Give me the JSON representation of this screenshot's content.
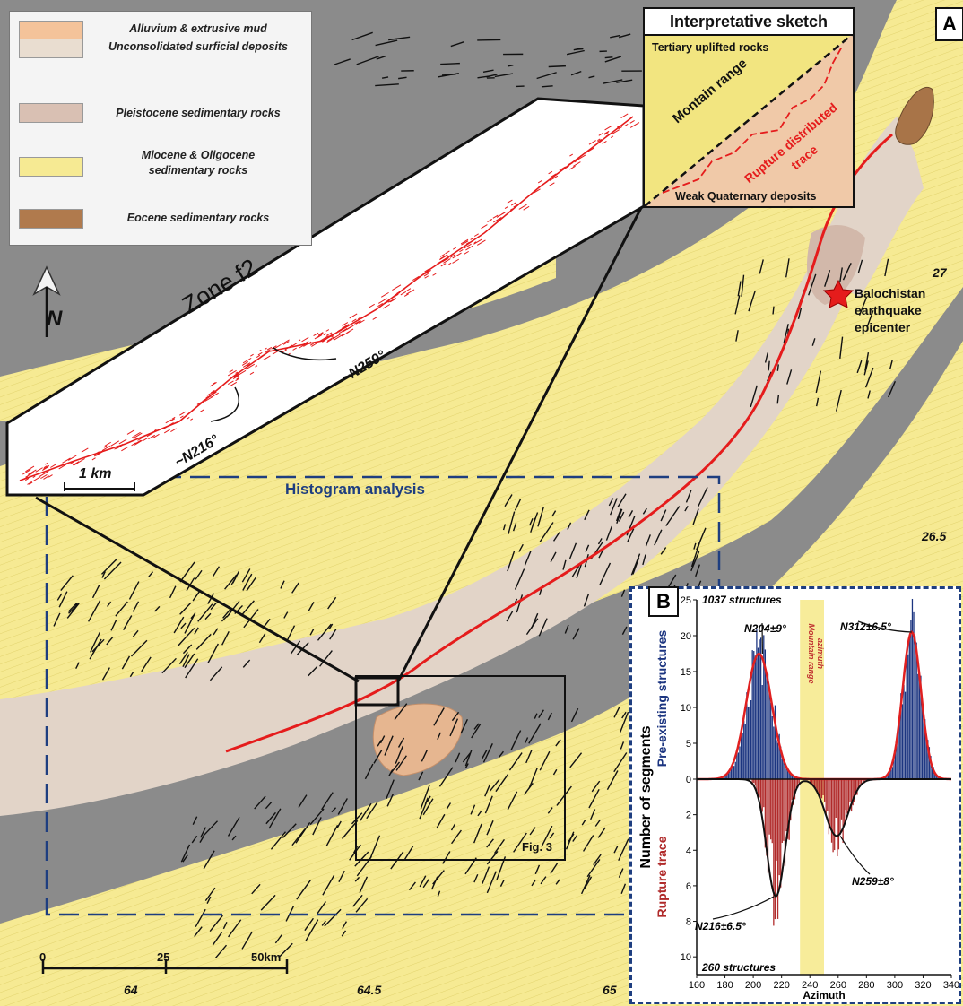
{
  "panel_letter": "A",
  "legend": {
    "items": [
      {
        "label": "Alluvium & extrusive mud",
        "color": "#f4c39a"
      },
      {
        "label": "Unconsolidated surficial deposits",
        "color": "#e9ddd0"
      },
      {
        "label": "Pleistocene sedimentary rocks",
        "color": "#d9c0b3"
      },
      {
        "label": "Miocene & Oligocene sedimentary rocks",
        "color": "#f6ea93"
      },
      {
        "label": "Eocene sedimentary rocks",
        "color": "#b07a4d"
      }
    ]
  },
  "sketch": {
    "title": "Interpretative sketch",
    "top_label": "Tertiary uplifted rocks",
    "range_label": "Montain range",
    "rupture_label_1": "Rupture distributed",
    "rupture_label_2": "trace",
    "bottom_label": "Weak Quaternary deposits"
  },
  "inset": {
    "zone_label": "Zone f2",
    "azimuth_1": "~N259°",
    "azimuth_2": "~N216°",
    "scale_label": "1 km"
  },
  "map_labels": {
    "histogram_box": "Histogram analysis",
    "fig3_box": "Fig. 3",
    "north": "N",
    "epicenter_line1": "Balochistan",
    "epicenter_line2": "earthquake",
    "epicenter_line3": "epicenter",
    "lat_27": "27",
    "lat_26_5": "26.5",
    "lon_64": "64",
    "lon_64_5": "64.5",
    "lon_65": "65",
    "scale_0": "0",
    "scale_25": "25",
    "scale_50": "50km"
  },
  "chart_data": {
    "type": "bar",
    "panel_label": "B",
    "xlabel": "Azimuth",
    "ylabel": "Number of segments",
    "upper_ylabel": "Pre-existing structures",
    "lower_ylabel": "Rupture trace",
    "x_ticks": [
      160,
      180,
      200,
      220,
      240,
      260,
      280,
      300,
      320,
      340
    ],
    "upper_ticks": [
      0,
      5,
      10,
      15,
      20,
      25
    ],
    "lower_ticks": [
      2,
      4,
      6,
      8,
      10
    ],
    "upper_count_label": "1037 structures",
    "lower_count_label": "260 structures",
    "band_label_1": "Mountain range",
    "band_label_2": "azimuth",
    "band_range": [
      233,
      250
    ],
    "upper_peaks": [
      {
        "label": "N204±9°",
        "mean": 204,
        "sd": 9,
        "amp": 17.5
      },
      {
        "label": "N312±6.5°",
        "mean": 312,
        "sd": 6.5,
        "amp": 20.5
      }
    ],
    "lower_peaks": [
      {
        "label": "N216±6.5°",
        "mean": 216,
        "sd": 6.5,
        "amp": 6.6
      },
      {
        "label": "N259±8°",
        "mean": 259,
        "sd": 8,
        "amp": 3.2
      }
    ],
    "colors": {
      "upper": "#1c3580",
      "lower": "#b02a2a",
      "fit_upper": "#e02020",
      "fit_lower": "#111111",
      "band": "#f7ec9a"
    },
    "xlim": [
      160,
      340
    ],
    "upper_ylim": [
      0,
      25
    ],
    "lower_ylim": [
      0,
      11
    ]
  }
}
